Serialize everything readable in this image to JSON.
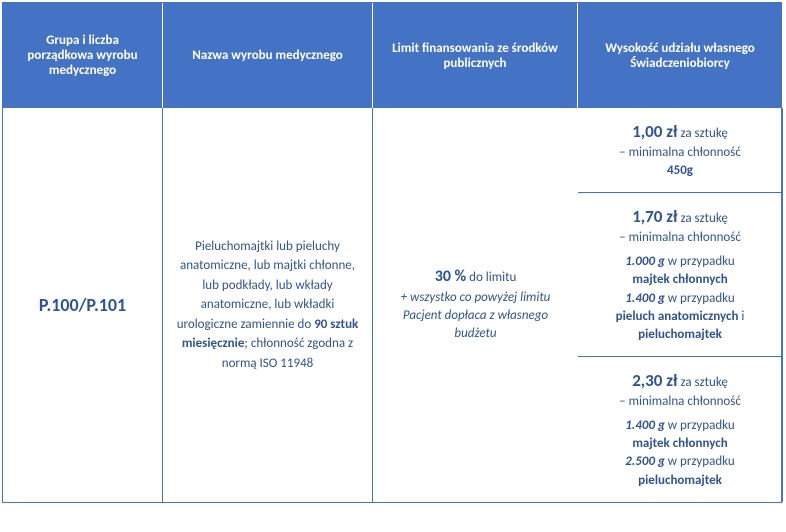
{
  "headers": {
    "col1": "Grupa i liczba porządkowa wyrobu medycznego",
    "col2": "Nazwa wyrobu medycznego",
    "col3": "Limit finansowania ze środków publicznych",
    "col4": "Wysokość udziału własnego Świadczeniobiorcy"
  },
  "body": {
    "group_code": "P.100/P.101",
    "product_desc_pre": "Pieluchomajtki lub pieluchy anatomiczne, lub majtki chłonne, lub podkłady, lub wkłady anatomiczne, lub wkładki urologiczne zamiennie do",
    "product_desc_bold": "90 sztuk miesięcznie",
    "product_desc_post": "; chłonność zgodna z normą ISO 11948",
    "limit1": {
      "price": "1,00 zł",
      "per": " za sztukę",
      "sub": "– minimalna chłonność",
      "weight": "450g"
    },
    "limit2": {
      "price": "1,70 zł",
      "per": " za sztukę",
      "sub": "– minimalna chłonność",
      "w1": "1.000 g",
      "t1": " w przypadku",
      "p1": "majtek chłonnych",
      "w2": "1.400 g",
      "t2": " w przypadku",
      "p2": "pieluch anatomicznych",
      "and": " i",
      "p3": "pieluchomajtek"
    },
    "limit3": {
      "price": "2,30 zł",
      "per": " za sztukę",
      "sub": "– minimalna chłonność",
      "w1": "1.400 g",
      "t1": " w przypadku",
      "p1": "majtek chłonnych",
      "w2": "2.500 g",
      "t2": " w przypadku",
      "p2": "pieluchomajtek"
    },
    "share": {
      "pct": "30 %",
      "to_limit": " do limitu",
      "note": "+ wszystko co powyżej limitu Pacjent dopłaca z własnego budżetu"
    }
  },
  "colors": {
    "header_bg": "#4472c4",
    "header_text": "#ffffff",
    "border": "#4472c4",
    "body_text": "#2f5496"
  }
}
